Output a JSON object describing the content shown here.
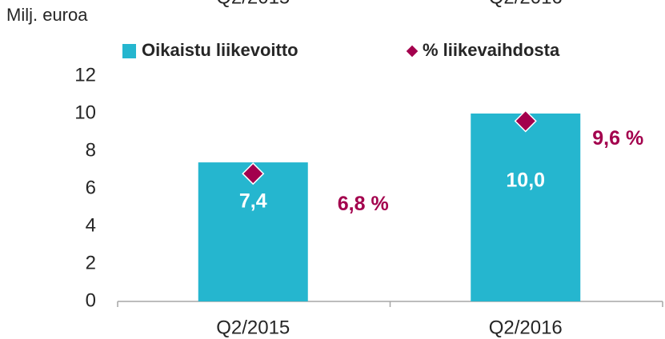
{
  "chart_data": {
    "type": "bar",
    "y_label": "Milj. euroa",
    "categories": [
      "Q2/2015",
      "Q2/2016"
    ],
    "series": [
      {
        "name": "Oikaistu liikevoitto",
        "type": "bar",
        "color": "#25b6cf",
        "values": [
          7.4,
          10.0
        ],
        "value_labels": [
          "7,4",
          "10,0"
        ]
      },
      {
        "name": "% liikevaihdosta",
        "type": "marker",
        "marker": "diamond",
        "color": "#a3004d",
        "values": [
          6.8,
          9.6
        ],
        "value_labels": [
          "6,8 %",
          "9,6 %"
        ]
      }
    ],
    "ylim": [
      0,
      12
    ],
    "yticks": [
      0,
      2,
      4,
      6,
      8,
      10,
      12
    ],
    "grid": false
  }
}
